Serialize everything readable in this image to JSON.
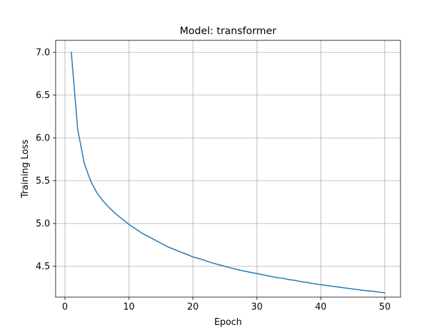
{
  "chart_data": {
    "type": "line",
    "title": "Model: transformer",
    "xlabel": "Epoch",
    "ylabel": "Training Loss",
    "xlim": [
      -1.45,
      52.45
    ],
    "ylim": [
      4.14,
      7.14
    ],
    "xticks": [
      0,
      10,
      20,
      30,
      40,
      50
    ],
    "yticks": [
      4.5,
      5.0,
      5.5,
      6.0,
      6.5,
      7.0
    ],
    "xtick_labels": [
      "0",
      "10",
      "20",
      "30",
      "40",
      "50"
    ],
    "ytick_labels": [
      "4.5",
      "5.0",
      "5.5",
      "6.0",
      "6.5",
      "7.0"
    ],
    "grid": true,
    "colors": {
      "line": "#1f77b4",
      "grid": "#b0b0b0",
      "axes": "#000000",
      "background": "#ffffff"
    },
    "series": [
      {
        "x": [
          1,
          2,
          3,
          4,
          5,
          6,
          7,
          8,
          9,
          10,
          11,
          12,
          13,
          14,
          15,
          16,
          17,
          18,
          19,
          20,
          21,
          22,
          23,
          24,
          25,
          26,
          27,
          28,
          29,
          30,
          31,
          32,
          33,
          34,
          35,
          36,
          37,
          38,
          39,
          40,
          41,
          42,
          43,
          44,
          45,
          46,
          47,
          48,
          49,
          50
        ],
        "values": [
          7.0,
          6.1,
          5.71,
          5.5,
          5.36,
          5.26,
          5.18,
          5.11,
          5.05,
          4.99,
          4.94,
          4.89,
          4.85,
          4.81,
          4.77,
          4.73,
          4.7,
          4.67,
          4.64,
          4.61,
          4.59,
          4.565,
          4.54,
          4.52,
          4.5,
          4.48,
          4.46,
          4.445,
          4.43,
          4.415,
          4.4,
          4.385,
          4.37,
          4.36,
          4.345,
          4.335,
          4.32,
          4.31,
          4.295,
          4.285,
          4.275,
          4.265,
          4.255,
          4.245,
          4.235,
          4.225,
          4.215,
          4.21,
          4.2,
          4.19
        ]
      }
    ]
  }
}
